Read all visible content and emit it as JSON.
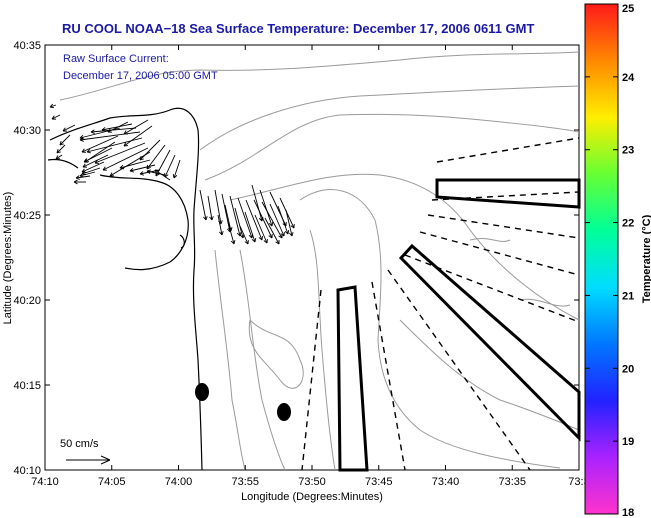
{
  "title": "RU COOL  NOAA−18  Sea Surface Temperature:  December 17, 2006 0611 GMT",
  "current_label_line1": "Raw Surface Current:",
  "current_label_line2": "December 17, 2006 05:00 GMT",
  "scale_label": "50 cm/s",
  "xlabel": "Longitude (Degrees:Minutes)",
  "ylabel": "Latitude (Degrees:Minutes)",
  "x_ticks": [
    "74:10",
    "74:05",
    "74:00",
    "73:55",
    "73:50",
    "73:45",
    "73:40",
    "73:35",
    "73:3"
  ],
  "y_ticks": [
    "40:35",
    "40:30",
    "40:25",
    "40:20",
    "40:15",
    "40:10"
  ],
  "colorbar": {
    "label": "Temperature (°C)",
    "ticks": [
      "25",
      "24",
      "23",
      "22",
      "21",
      "20",
      "19",
      "18"
    ],
    "range": [
      18,
      25
    ],
    "colors": [
      "#ff1a1a",
      "#ff8800",
      "#ffee00",
      "#66ff33",
      "#00ff99",
      "#00ddff",
      "#0077ff",
      "#2222ff",
      "#aa22ff",
      "#ff33cc"
    ]
  }
}
